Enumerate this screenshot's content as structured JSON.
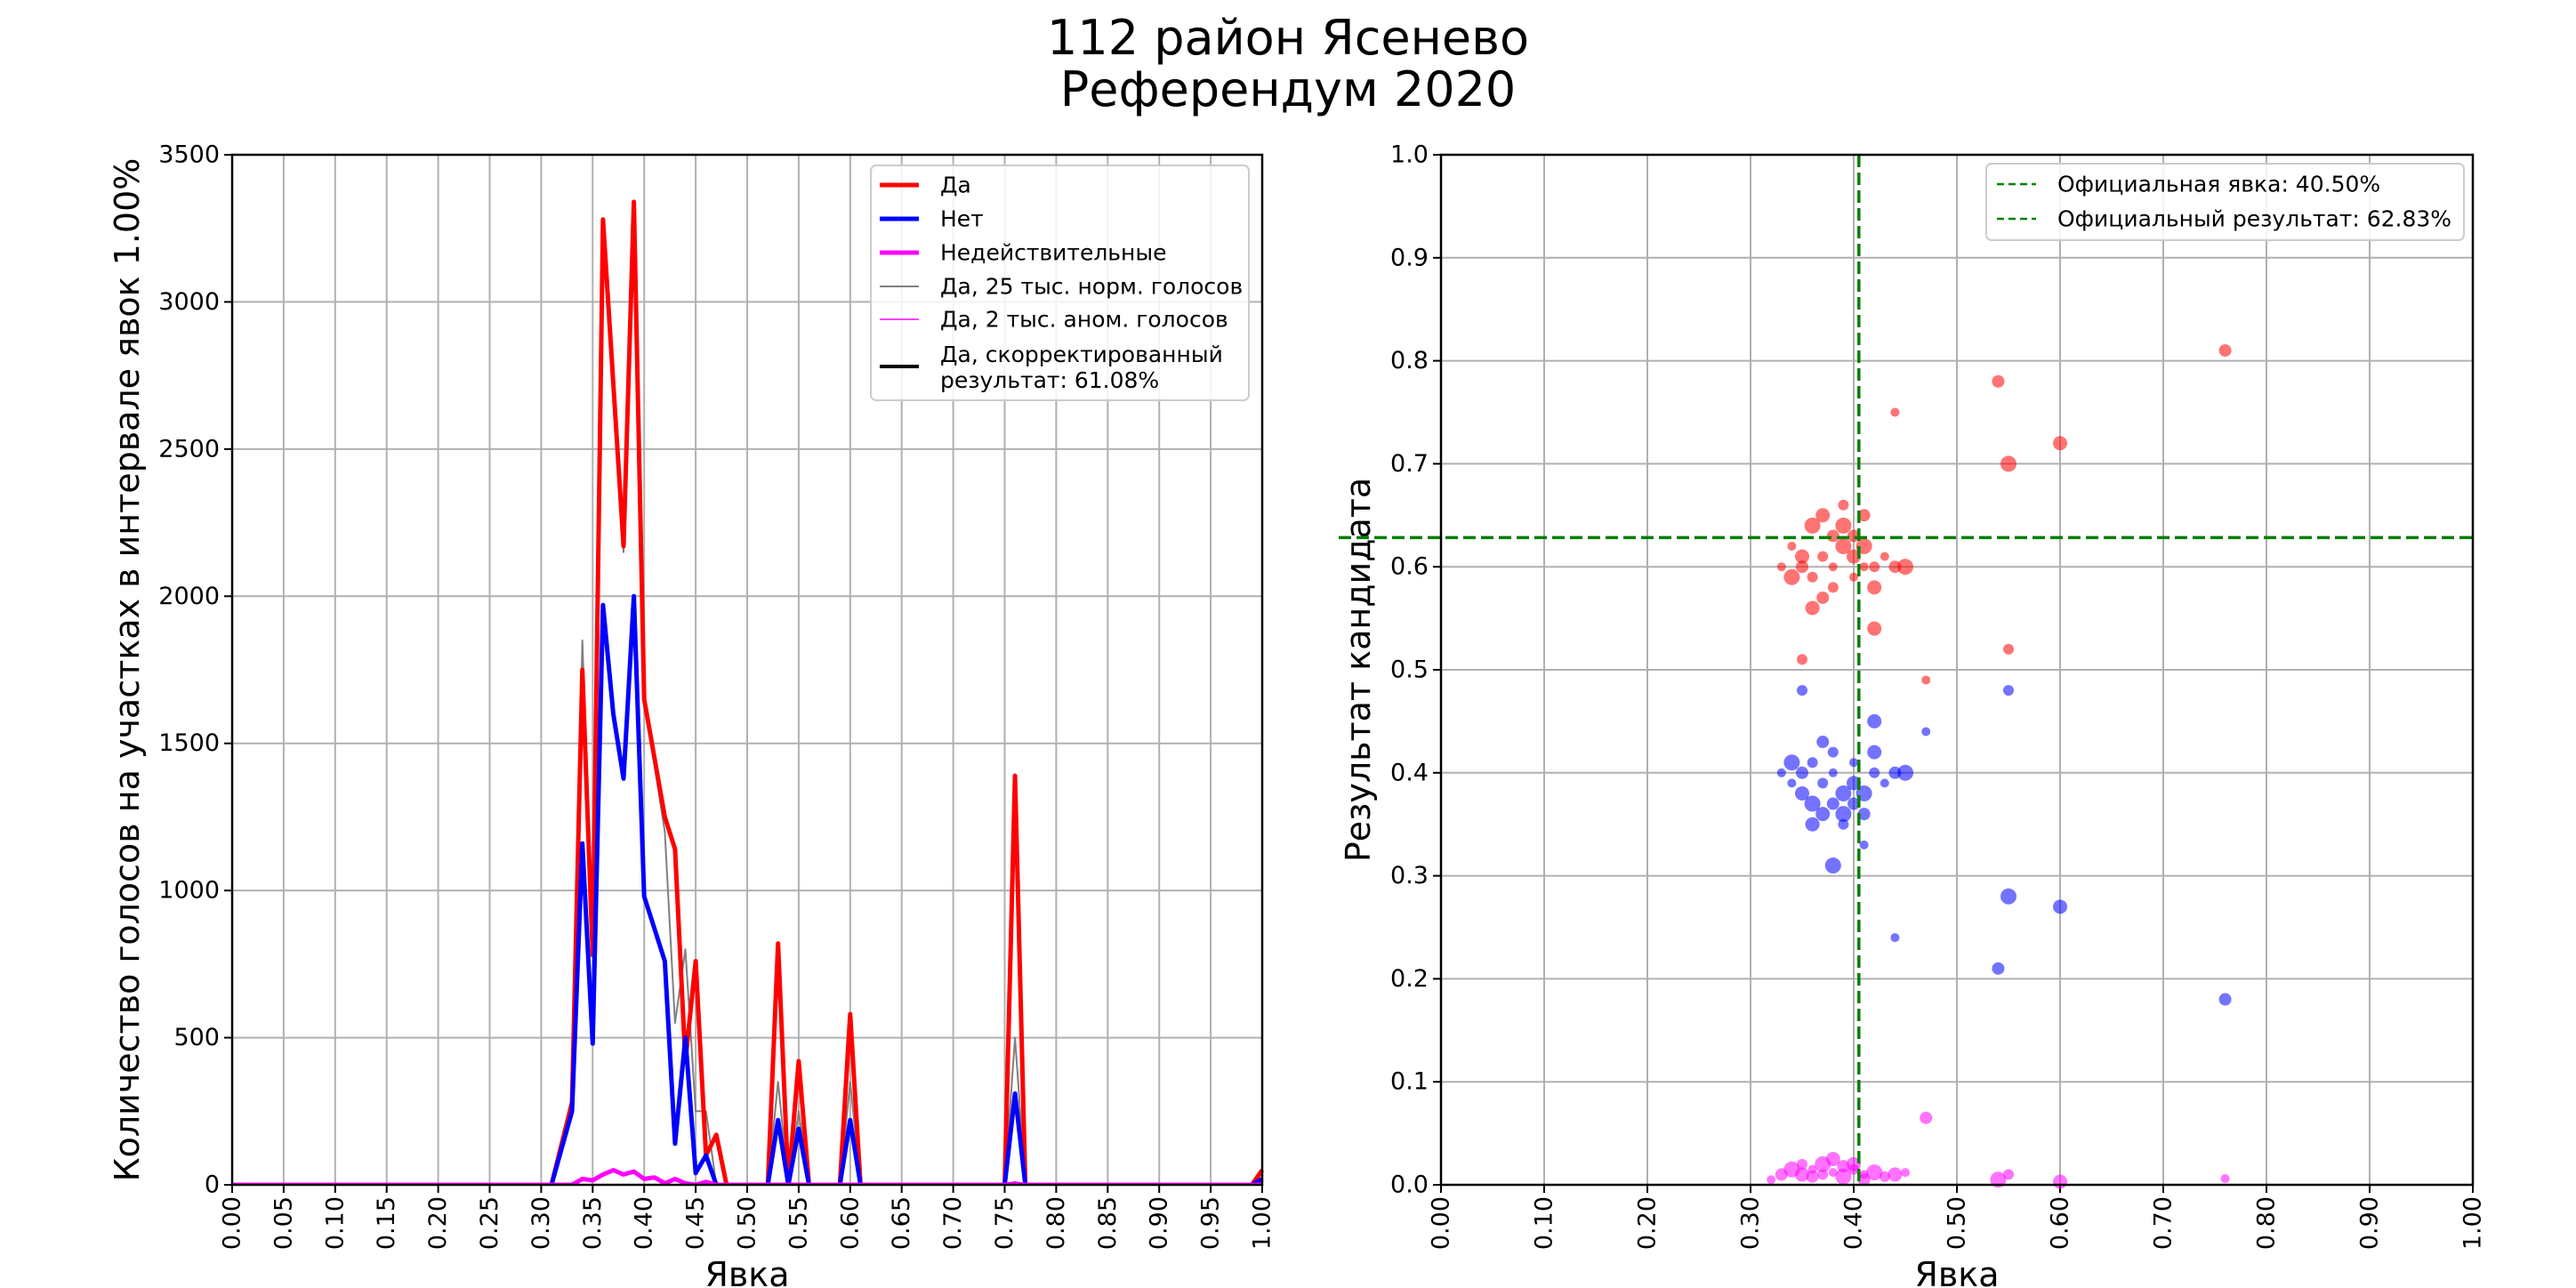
{
  "title_lines": [
    "112 район Ясенево",
    "Референдум 2020"
  ],
  "chart_data": [
    {
      "type": "line",
      "xlabel": "Явка",
      "ylabel": "Количество голосов на участках в интервале явок 1.00%",
      "xlim": [
        0,
        1
      ],
      "ylim": [
        0,
        3500
      ],
      "xticks": [
        "0.00",
        "0.05",
        "0.10",
        "0.15",
        "0.20",
        "0.25",
        "0.30",
        "0.35",
        "0.40",
        "0.45",
        "0.50",
        "0.55",
        "0.60",
        "0.65",
        "0.70",
        "0.75",
        "0.80",
        "0.85",
        "0.90",
        "0.95",
        "1.00"
      ],
      "yticks": [
        "0",
        "500",
        "1000",
        "1500",
        "2000",
        "2500",
        "3000",
        "3500"
      ],
      "grid": true,
      "legend_position": "top-right",
      "series": [
        {
          "name": "Да, 25 тыс. норм. голосов",
          "color": "#808080",
          "width": 2,
          "points": [
            [
              0,
              0
            ],
            [
              0.31,
              0
            ],
            [
              0.33,
              300
            ],
            [
              0.34,
              1850
            ],
            [
              0.35,
              800
            ],
            [
              0.36,
              3250
            ],
            [
              0.38,
              2150
            ],
            [
              0.39,
              3300
            ],
            [
              0.4,
              1650
            ],
            [
              0.42,
              1200
            ],
            [
              0.43,
              550
            ],
            [
              0.44,
              800
            ],
            [
              0.45,
              250
            ],
            [
              0.46,
              250
            ],
            [
              0.47,
              0
            ],
            [
              0.52,
              0
            ],
            [
              0.53,
              350
            ],
            [
              0.54,
              0
            ],
            [
              0.55,
              250
            ],
            [
              0.56,
              0
            ],
            [
              0.59,
              0
            ],
            [
              0.6,
              350
            ],
            [
              0.61,
              0
            ],
            [
              0.75,
              0
            ],
            [
              0.76,
              500
            ],
            [
              0.77,
              0
            ],
            [
              0.99,
              0
            ],
            [
              1.0,
              0
            ]
          ]
        },
        {
          "name": "Да",
          "color": "#ff0000",
          "width": 5,
          "points": [
            [
              0,
              0
            ],
            [
              0.31,
              0
            ],
            [
              0.33,
              280
            ],
            [
              0.34,
              1750
            ],
            [
              0.35,
              780
            ],
            [
              0.36,
              3280
            ],
            [
              0.38,
              2170
            ],
            [
              0.39,
              3340
            ],
            [
              0.4,
              1650
            ],
            [
              0.42,
              1250
            ],
            [
              0.43,
              1140
            ],
            [
              0.44,
              420
            ],
            [
              0.45,
              760
            ],
            [
              0.46,
              100
            ],
            [
              0.47,
              170
            ],
            [
              0.48,
              0
            ],
            [
              0.52,
              0
            ],
            [
              0.53,
              820
            ],
            [
              0.54,
              0
            ],
            [
              0.55,
              420
            ],
            [
              0.56,
              0
            ],
            [
              0.59,
              0
            ],
            [
              0.6,
              580
            ],
            [
              0.61,
              0
            ],
            [
              0.75,
              0
            ],
            [
              0.76,
              1390
            ],
            [
              0.77,
              0
            ],
            [
              0.99,
              0
            ],
            [
              1.0,
              50
            ]
          ]
        },
        {
          "name": "Нет",
          "color": "#0000ff",
          "width": 5,
          "points": [
            [
              0,
              0
            ],
            [
              0.31,
              0
            ],
            [
              0.33,
              250
            ],
            [
              0.34,
              1160
            ],
            [
              0.35,
              480
            ],
            [
              0.36,
              1970
            ],
            [
              0.37,
              1600
            ],
            [
              0.38,
              1380
            ],
            [
              0.39,
              2000
            ],
            [
              0.4,
              980
            ],
            [
              0.42,
              760
            ],
            [
              0.43,
              140
            ],
            [
              0.44,
              500
            ],
            [
              0.45,
              40
            ],
            [
              0.46,
              100
            ],
            [
              0.47,
              0
            ],
            [
              0.52,
              0
            ],
            [
              0.53,
              220
            ],
            [
              0.54,
              0
            ],
            [
              0.55,
              190
            ],
            [
              0.56,
              0
            ],
            [
              0.59,
              0
            ],
            [
              0.6,
              220
            ],
            [
              0.61,
              0
            ],
            [
              0.75,
              0
            ],
            [
              0.76,
              310
            ],
            [
              0.77,
              0
            ],
            [
              0.99,
              0
            ],
            [
              1.0,
              20
            ]
          ]
        },
        {
          "name": "Недействительные",
          "color": "#ff00ff",
          "width": 5,
          "points": [
            [
              0,
              0
            ],
            [
              0.33,
              0
            ],
            [
              0.34,
              20
            ],
            [
              0.35,
              15
            ],
            [
              0.36,
              35
            ],
            [
              0.37,
              50
            ],
            [
              0.38,
              35
            ],
            [
              0.39,
              45
            ],
            [
              0.4,
              20
            ],
            [
              0.41,
              25
            ],
            [
              0.42,
              5
            ],
            [
              0.43,
              20
            ],
            [
              0.44,
              5
            ],
            [
              0.45,
              0
            ],
            [
              0.46,
              10
            ],
            [
              0.47,
              0
            ],
            [
              1.0,
              0
            ]
          ]
        },
        {
          "name": "Да, 2 тыс. аном. голосов",
          "color": "#ff00ff",
          "width": 1.5,
          "points": [
            [
              0,
              0
            ],
            [
              0.74,
              0
            ],
            [
              0.76,
              10
            ],
            [
              0.78,
              0
            ],
            [
              1.0,
              0
            ]
          ]
        }
      ],
      "legend": [
        {
          "label": "Да",
          "color": "#ff0000",
          "width": 5
        },
        {
          "label": "Нет",
          "color": "#0000ff",
          "width": 5
        },
        {
          "label": "Недействительные",
          "color": "#ff00ff",
          "width": 5
        },
        {
          "label": "Да, 25 тыс. норм. голосов",
          "color": "#808080",
          "width": 2
        },
        {
          "label": "Да, 2 тыс. аном. голосов",
          "color": "#ff00ff",
          "width": 1.5
        },
        {
          "label": "Да, скорректированный\nрезультат: 61.08%",
          "color": "#000000",
          "width": 4
        }
      ]
    },
    {
      "type": "scatter",
      "xlabel": "Явка",
      "ylabel": "Результат кандидата",
      "xlim": [
        0,
        1
      ],
      "ylim": [
        0,
        1
      ],
      "xticks": [
        "0.00",
        "0.10",
        "0.20",
        "0.30",
        "0.40",
        "0.50",
        "0.60",
        "0.70",
        "0.80",
        "0.90",
        "1.00"
      ],
      "yticks": [
        "0.0",
        "0.1",
        "0.2",
        "0.3",
        "0.4",
        "0.5",
        "0.6",
        "0.7",
        "0.8",
        "0.9",
        "1.0"
      ],
      "grid": true,
      "legend_position": "top-right",
      "official_turnout": 0.405,
      "official_result": 0.6283,
      "legend": [
        {
          "label": "Официальная явка: 40.50%",
          "color": "#008000"
        },
        {
          "label": "Официальный результат: 62.83%",
          "color": "#008000"
        }
      ],
      "series": [
        {
          "name": "Да",
          "color": "#ff0000",
          "points": [
            [
              0.34,
              0.62
            ],
            [
              0.35,
              0.6
            ],
            [
              0.36,
              0.64
            ],
            [
              0.37,
              0.61
            ],
            [
              0.37,
              0.65
            ],
            [
              0.38,
              0.6
            ],
            [
              0.38,
              0.63
            ],
            [
              0.39,
              0.62
            ],
            [
              0.39,
              0.66
            ],
            [
              0.4,
              0.61
            ],
            [
              0.4,
              0.59
            ],
            [
              0.41,
              0.65
            ],
            [
              0.41,
              0.62
            ],
            [
              0.42,
              0.6
            ],
            [
              0.42,
              0.58
            ],
            [
              0.43,
              0.61
            ],
            [
              0.44,
              0.6
            ],
            [
              0.45,
              0.6
            ],
            [
              0.36,
              0.59
            ],
            [
              0.35,
              0.61
            ],
            [
              0.33,
              0.6
            ],
            [
              0.37,
              0.57
            ],
            [
              0.39,
              0.64
            ],
            [
              0.38,
              0.58
            ],
            [
              0.36,
              0.56
            ],
            [
              0.41,
              0.6
            ],
            [
              0.4,
              0.63
            ],
            [
              0.34,
              0.59
            ],
            [
              0.35,
              0.51
            ],
            [
              0.42,
              0.54
            ],
            [
              0.47,
              0.49
            ],
            [
              0.54,
              0.78
            ],
            [
              0.55,
              0.7
            ],
            [
              0.55,
              0.52
            ],
            [
              0.6,
              0.72
            ],
            [
              0.44,
              0.75
            ],
            [
              0.76,
              0.81
            ]
          ]
        },
        {
          "name": "Нет",
          "color": "#0000ff",
          "points": [
            [
              0.34,
              0.39
            ],
            [
              0.35,
              0.4
            ],
            [
              0.36,
              0.37
            ],
            [
              0.37,
              0.39
            ],
            [
              0.37,
              0.36
            ],
            [
              0.38,
              0.4
            ],
            [
              0.38,
              0.37
            ],
            [
              0.39,
              0.38
            ],
            [
              0.39,
              0.35
            ],
            [
              0.4,
              0.39
            ],
            [
              0.4,
              0.41
            ],
            [
              0.41,
              0.36
            ],
            [
              0.41,
              0.38
            ],
            [
              0.42,
              0.4
            ],
            [
              0.42,
              0.42
            ],
            [
              0.43,
              0.39
            ],
            [
              0.44,
              0.4
            ],
            [
              0.45,
              0.4
            ],
            [
              0.36,
              0.41
            ],
            [
              0.35,
              0.38
            ],
            [
              0.33,
              0.4
            ],
            [
              0.37,
              0.43
            ],
            [
              0.39,
              0.36
            ],
            [
              0.38,
              0.42
            ],
            [
              0.36,
              0.35
            ],
            [
              0.41,
              0.33
            ],
            [
              0.4,
              0.37
            ],
            [
              0.34,
              0.41
            ],
            [
              0.35,
              0.48
            ],
            [
              0.42,
              0.45
            ],
            [
              0.47,
              0.44
            ],
            [
              0.54,
              0.21
            ],
            [
              0.55,
              0.28
            ],
            [
              0.55,
              0.48
            ],
            [
              0.6,
              0.27
            ],
            [
              0.44,
              0.24
            ],
            [
              0.76,
              0.18
            ],
            [
              0.38,
              0.31
            ]
          ]
        },
        {
          "name": "Недействительные",
          "color": "#ff00ff",
          "points": [
            [
              0.32,
              0.005
            ],
            [
              0.33,
              0.01
            ],
            [
              0.34,
              0.015
            ],
            [
              0.35,
              0.02
            ],
            [
              0.35,
              0.01
            ],
            [
              0.36,
              0.015
            ],
            [
              0.36,
              0.008
            ],
            [
              0.37,
              0.02
            ],
            [
              0.37,
              0.01
            ],
            [
              0.38,
              0.025
            ],
            [
              0.38,
              0.012
            ],
            [
              0.39,
              0.018
            ],
            [
              0.39,
              0.008
            ],
            [
              0.4,
              0.015
            ],
            [
              0.4,
              0.02
            ],
            [
              0.41,
              0.01
            ],
            [
              0.41,
              0.005
            ],
            [
              0.42,
              0.012
            ],
            [
              0.43,
              0.008
            ],
            [
              0.44,
              0.01
            ],
            [
              0.45,
              0.012
            ],
            [
              0.47,
              0.065
            ],
            [
              0.54,
              0.005
            ],
            [
              0.55,
              0.01
            ],
            [
              0.6,
              0.003
            ],
            [
              0.76,
              0.006
            ]
          ]
        }
      ]
    }
  ]
}
